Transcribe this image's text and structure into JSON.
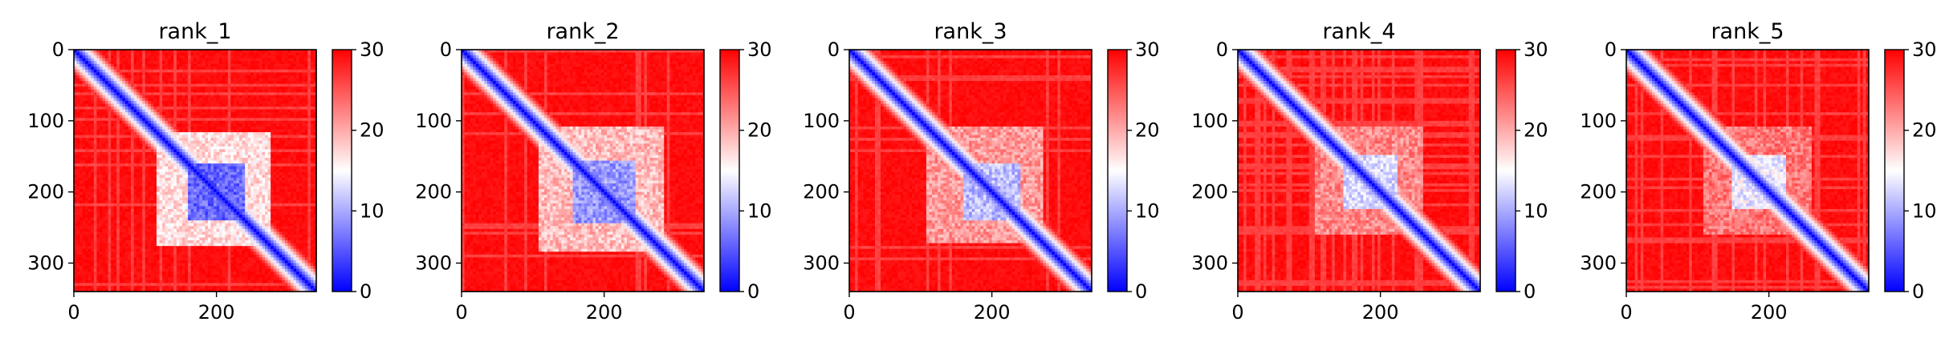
{
  "chart_data": [
    {
      "type": "heatmap",
      "title": "rank_1",
      "x_range": [
        0,
        340
      ],
      "y_range": [
        0,
        340
      ],
      "y_inverted": true,
      "x_ticks": [
        "0",
        "200"
      ],
      "y_ticks": [
        "0",
        "100",
        "200",
        "300"
      ],
      "x_tick_values": [
        0,
        200
      ],
      "y_tick_values": [
        0,
        100,
        200,
        300
      ],
      "colorbar": {
        "min": 0,
        "max": 30,
        "ticks": [
          "0",
          "10",
          "20",
          "30"
        ],
        "tick_values": [
          0,
          10,
          20,
          30
        ],
        "colormap": "bwr"
      },
      "diagonal_value": 0,
      "background_value": 30,
      "domains": [
        {
          "start": 160,
          "end": 240,
          "value": 6
        },
        {
          "start": 115,
          "end": 275,
          "value": 17
        }
      ]
    },
    {
      "type": "heatmap",
      "title": "rank_2",
      "x_range": [
        0,
        340
      ],
      "y_range": [
        0,
        340
      ],
      "y_inverted": true,
      "x_ticks": [
        "0",
        "200"
      ],
      "y_ticks": [
        "0",
        "100",
        "200",
        "300"
      ],
      "x_tick_values": [
        0,
        200
      ],
      "y_tick_values": [
        0,
        100,
        200,
        300
      ],
      "colorbar": {
        "min": 0,
        "max": 30,
        "ticks": [
          "0",
          "10",
          "20",
          "30"
        ],
        "tick_values": [
          0,
          10,
          20,
          30
        ],
        "colormap": "bwr"
      },
      "diagonal_value": 0,
      "background_value": 30,
      "domains": [
        {
          "start": 155,
          "end": 245,
          "value": 9
        },
        {
          "start": 110,
          "end": 285,
          "value": 19
        }
      ]
    },
    {
      "type": "heatmap",
      "title": "rank_3",
      "x_range": [
        0,
        340
      ],
      "y_range": [
        0,
        340
      ],
      "y_inverted": true,
      "x_ticks": [
        "0",
        "200"
      ],
      "y_ticks": [
        "0",
        "100",
        "200",
        "300"
      ],
      "x_tick_values": [
        0,
        200
      ],
      "y_tick_values": [
        0,
        100,
        200,
        300
      ],
      "colorbar": {
        "min": 0,
        "max": 30,
        "ticks": [
          "0",
          "10",
          "20",
          "30"
        ],
        "tick_values": [
          0,
          10,
          20,
          30
        ],
        "colormap": "bwr"
      },
      "diagonal_value": 0,
      "background_value": 30,
      "domains": [
        {
          "start": 160,
          "end": 240,
          "value": 11
        },
        {
          "start": 110,
          "end": 270,
          "value": 21
        }
      ]
    },
    {
      "type": "heatmap",
      "title": "rank_4",
      "x_range": [
        0,
        340
      ],
      "y_range": [
        0,
        340
      ],
      "y_inverted": true,
      "x_ticks": [
        "0",
        "200"
      ],
      "y_ticks": [
        "0",
        "100",
        "200",
        "300"
      ],
      "x_tick_values": [
        0,
        200
      ],
      "y_tick_values": [
        0,
        100,
        200,
        300
      ],
      "colorbar": {
        "min": 0,
        "max": 30,
        "ticks": [
          "0",
          "10",
          "20",
          "30"
        ],
        "tick_values": [
          0,
          10,
          20,
          30
        ],
        "colormap": "bwr"
      },
      "diagonal_value": 0,
      "background_value": 30,
      "domains": [
        {
          "start": 150,
          "end": 225,
          "value": 13
        },
        {
          "start": 110,
          "end": 260,
          "value": 22
        }
      ]
    },
    {
      "type": "heatmap",
      "title": "rank_5",
      "x_range": [
        0,
        340
      ],
      "y_range": [
        0,
        340
      ],
      "y_inverted": true,
      "x_ticks": [
        "0",
        "200"
      ],
      "y_ticks": [
        "0",
        "100",
        "200",
        "300"
      ],
      "x_tick_values": [
        0,
        200
      ],
      "y_tick_values": [
        0,
        100,
        200,
        300
      ],
      "colorbar": {
        "min": 0,
        "max": 30,
        "ticks": [
          "0",
          "10",
          "20",
          "30"
        ],
        "tick_values": [
          0,
          10,
          20,
          30
        ],
        "colormap": "bwr"
      },
      "diagonal_value": 0,
      "background_value": 30,
      "domains": [
        {
          "start": 150,
          "end": 225,
          "value": 14
        },
        {
          "start": 110,
          "end": 260,
          "value": 23
        }
      ]
    }
  ]
}
